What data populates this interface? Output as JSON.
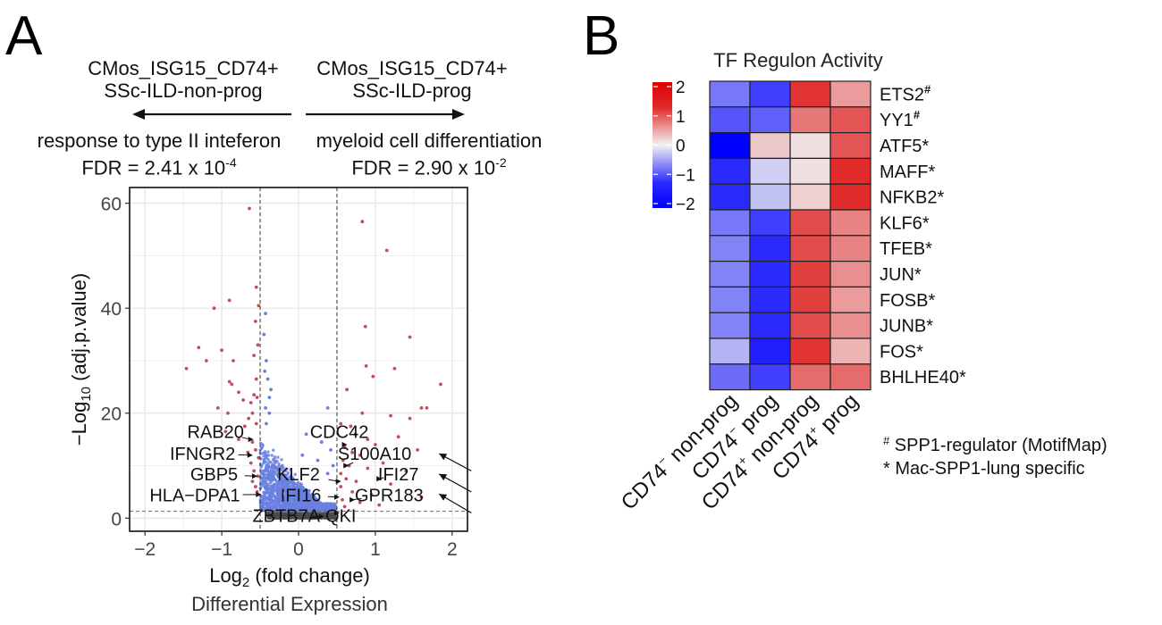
{
  "panels": {
    "a_letter": "A",
    "b_letter": "B"
  },
  "panel_a_header": {
    "left_group_line1": "CMos_ISG15_CD74+",
    "left_group_line2": "SSc-ILD-non-prog",
    "right_group_line1": "CMos_ISG15_CD74+",
    "right_group_line2": "SSc-ILD-prog",
    "left_term": "response to type II inteferon",
    "left_fdr_prefix": "FDR = 2.41 x 10",
    "left_fdr_exp": "-4",
    "right_term": "myeloid cell differentiation",
    "right_fdr_prefix": "FDR = 2.90 x 10",
    "right_fdr_exp": "-2"
  },
  "chart_data": [
    {
      "type": "scatter",
      "title": "Differential Expression",
      "xlabel": "Log2 (fold change)",
      "xlabel_main": "Log",
      "xlabel_sub": "2",
      "xlabel_rest": " (fold change)",
      "ylabel_prefix": "−Log",
      "ylabel_sub": "10",
      "ylabel_rest": " (adj.p.value)",
      "xlim": [
        -2.2,
        2.2
      ],
      "ylim": [
        -2.5,
        63
      ],
      "xticks": [
        -2,
        -1,
        0,
        1,
        2
      ],
      "xtick_labels": [
        "−2",
        "−1",
        "0",
        "1",
        "2"
      ],
      "yticks": [
        0,
        20,
        40,
        60
      ],
      "ytick_labels": [
        "0",
        "20",
        "40",
        "60"
      ],
      "grid": true,
      "fc_threshold": [
        -0.5,
        0.5
      ],
      "p_threshold": 1.3,
      "colors": {
        "significant": "#c0505a",
        "up_or_down_sig": "#c0505a",
        "nonsig_fc": "#6a80e0",
        "ns": "#4a4a4a",
        "threshold_line": "#555555"
      },
      "series": [
        {
          "name": "significant",
          "color": "#c0505a",
          "points": [
            [
              -0.64,
              59.0
            ],
            [
              -0.55,
              44.0
            ],
            [
              -0.9,
              41.5
            ],
            [
              -1.1,
              40.0
            ],
            [
              -0.52,
              40.5
            ],
            [
              -0.56,
              37.5
            ],
            [
              -1.3,
              32.5
            ],
            [
              -1.0,
              32.0
            ],
            [
              -0.53,
              33.0
            ],
            [
              -0.58,
              31.0
            ],
            [
              -1.46,
              28.5
            ],
            [
              -1.2,
              30.0
            ],
            [
              -0.85,
              30.0
            ],
            [
              -0.55,
              26.5
            ],
            [
              -0.58,
              23.5
            ],
            [
              -0.9,
              26.0
            ],
            [
              -0.87,
              25.5
            ],
            [
              -0.78,
              24.0
            ],
            [
              -0.72,
              22.5
            ],
            [
              -0.62,
              22.0
            ],
            [
              -0.54,
              23.0
            ],
            [
              -1.05,
              21.0
            ],
            [
              -0.92,
              20.0
            ],
            [
              -0.6,
              20.0
            ],
            [
              -0.65,
              19.0
            ],
            [
              -0.55,
              18.0
            ],
            [
              -0.7,
              17.5
            ],
            [
              -0.95,
              16.5
            ],
            [
              -0.78,
              15.0
            ],
            [
              -0.6,
              14.5
            ],
            [
              -0.56,
              13.0
            ],
            [
              -0.66,
              12.5
            ],
            [
              -0.52,
              11.5
            ],
            [
              -0.62,
              10.5
            ],
            [
              -0.58,
              9.0
            ],
            [
              -0.53,
              8.0
            ],
            [
              -0.6,
              7.0
            ],
            [
              -0.56,
              6.0
            ],
            [
              -0.54,
              5.0
            ],
            [
              0.83,
              56.5
            ],
            [
              1.15,
              51.0
            ],
            [
              0.87,
              36.5
            ],
            [
              1.45,
              34.5
            ],
            [
              0.88,
              29.0
            ],
            [
              1.25,
              28.5
            ],
            [
              1.85,
              25.5
            ],
            [
              0.97,
              27.0
            ],
            [
              0.63,
              24.5
            ],
            [
              1.6,
              21.0
            ],
            [
              1.67,
              21.0
            ],
            [
              0.83,
              20.0
            ],
            [
              1.2,
              19.5
            ],
            [
              1.45,
              19.0
            ],
            [
              0.55,
              18.0
            ],
            [
              0.68,
              17.5
            ],
            [
              0.74,
              16.0
            ],
            [
              1.3,
              15.5
            ],
            [
              0.9,
              15.0
            ],
            [
              1.0,
              14.0
            ],
            [
              0.6,
              13.5
            ],
            [
              1.55,
              13.0
            ],
            [
              0.7,
              12.5
            ],
            [
              0.8,
              12.0
            ],
            [
              0.58,
              11.0
            ],
            [
              1.1,
              10.5
            ],
            [
              0.66,
              10.0
            ],
            [
              0.9,
              9.5
            ],
            [
              1.4,
              9.0
            ],
            [
              0.55,
              8.5
            ],
            [
              0.62,
              7.5
            ],
            [
              0.75,
              7.0
            ],
            [
              1.2,
              6.5
            ],
            [
              0.55,
              6.0
            ],
            [
              0.7,
              5.0
            ],
            [
              0.95,
              4.5
            ],
            [
              1.6,
              4.0
            ],
            [
              0.57,
              3.5
            ],
            [
              0.8,
              3.0
            ],
            [
              1.05,
              2.5
            ],
            [
              0.6,
              2.2
            ]
          ]
        },
        {
          "name": "large-fold-change-only",
          "color": "#6a80e0",
          "points": [
            [
              -0.43,
              39.0
            ],
            [
              -0.45,
              35.0
            ],
            [
              -0.42,
              30.0
            ],
            [
              -0.44,
              28.0
            ],
            [
              -0.4,
              26.5
            ],
            [
              -0.36,
              24.5
            ],
            [
              -0.38,
              23.0
            ],
            [
              -0.43,
              21.0
            ],
            [
              -0.38,
              20.0
            ],
            [
              -0.42,
              18.0
            ],
            [
              0.38,
              21.0
            ],
            [
              0.1,
              16.0
            ],
            [
              0.42,
              13.0
            ],
            [
              0.3,
              14.5
            ],
            [
              0.05,
              12.0
            ],
            [
              0.25,
              11.0
            ],
            [
              0.45,
              10.0
            ],
            [
              0.38,
              8.5
            ]
          ]
        },
        {
          "name": "cloud",
          "color": "#6a80e0",
          "cloud": true
        }
      ],
      "labels": [
        {
          "gene": "RAB20",
          "x": -0.62,
          "y": 15.0,
          "tx": -1.08,
          "ty": 16.5,
          "anchor": "middle"
        },
        {
          "gene": "IFNGR2",
          "x": -0.63,
          "y": 12.0,
          "tx": -1.25,
          "ty": 12.3,
          "anchor": "middle"
        },
        {
          "gene": "GBP5",
          "x": -0.57,
          "y": 8.0,
          "tx": -1.1,
          "ty": 8.4,
          "anchor": "middle"
        },
        {
          "gene": "HLA−DPA1",
          "x": -0.52,
          "y": 4.5,
          "tx": -1.35,
          "ty": 4.4,
          "anchor": "middle"
        },
        {
          "gene": "CDC42",
          "x": 0.6,
          "y": 14.0,
          "tx": 0.53,
          "ty": 16.5,
          "anchor": "middle"
        },
        {
          "gene": "S100A10",
          "x": 0.62,
          "y": 10.0,
          "tx": 0.99,
          "ty": 12.3,
          "anchor": "middle"
        },
        {
          "gene": "KLF2",
          "x": 0.52,
          "y": 7.0,
          "tx": 0.0,
          "ty": 8.4,
          "anchor": "middle"
        },
        {
          "gene": "IFI27",
          "x": 1.05,
          "y": 7.5,
          "tx": 1.3,
          "ty": 8.4,
          "anchor": "middle"
        },
        {
          "gene": "IFI16",
          "x": 0.5,
          "y": 4.0,
          "tx": 0.03,
          "ty": 4.4,
          "anchor": "middle"
        },
        {
          "gene": "GPR183",
          "x": 0.7,
          "y": 3.5,
          "tx": 1.18,
          "ty": 4.4,
          "anchor": "middle"
        },
        {
          "gene": "ZBTB7A",
          "x": 0.3,
          "y": 0.3,
          "tx": -0.16,
          "ty": 0.5,
          "anchor": "middle"
        },
        {
          "gene": "QKI",
          "x": 0.5,
          "y": 1.0,
          "tx": 0.55,
          "ty": 0.5,
          "anchor": "middle"
        }
      ],
      "external_arrows": [
        {
          "target_gene": "S100A10",
          "from_x": 2.25,
          "from_y": 9.0,
          "to_x": 1.83,
          "to_y": 12.3
        },
        {
          "target_gene": "IFI27",
          "from_x": 2.25,
          "from_y": 5.0,
          "to_x": 1.83,
          "to_y": 8.4
        },
        {
          "target_gene": "GPR183",
          "from_x": 2.25,
          "from_y": 1.0,
          "to_x": 1.83,
          "to_y": 4.6
        }
      ]
    },
    {
      "type": "heatmap",
      "title": "TF Regulon Activity",
      "columns": [
        {
          "base": "CD74",
          "sup": "−",
          "rest": " non-prog"
        },
        {
          "base": "CD74",
          "sup": "−",
          "rest": " prog"
        },
        {
          "base": "CD74",
          "sup": "+",
          "rest": " non-prog"
        },
        {
          "base": "CD74",
          "sup": "+",
          "rest": " prog"
        }
      ],
      "column_labels_plain": [
        "CD74- non-prog",
        "CD74- prog",
        "CD74+ non-prog",
        "CD74+ prog"
      ],
      "rows": [
        {
          "name": "ETS2",
          "mark": "#",
          "values": [
            -0.9,
            -1.4,
            1.5,
            0.6
          ]
        },
        {
          "name": "YY1",
          "mark": "#",
          "values": [
            -1.2,
            -1.1,
            0.9,
            1.2
          ]
        },
        {
          "name": "ATF5",
          "mark": "*",
          "values": [
            -2.0,
            0.25,
            0.1,
            1.2
          ]
        },
        {
          "name": "MAFF",
          "mark": "*",
          "values": [
            -1.6,
            -0.2,
            0.1,
            1.6
          ]
        },
        {
          "name": "NFKB2",
          "mark": "*",
          "values": [
            -1.6,
            -0.3,
            0.2,
            1.6
          ]
        },
        {
          "name": "KLF6",
          "mark": "*",
          "values": [
            -0.9,
            -1.4,
            1.3,
            0.8
          ]
        },
        {
          "name": "TFEB",
          "mark": "*",
          "values": [
            -0.8,
            -1.6,
            1.3,
            0.8
          ]
        },
        {
          "name": "JUN",
          "mark": "*",
          "values": [
            -0.8,
            -1.6,
            1.4,
            0.7
          ]
        },
        {
          "name": "FOSB",
          "mark": "*",
          "values": [
            -0.8,
            -1.6,
            1.4,
            0.6
          ]
        },
        {
          "name": "JUNB",
          "mark": "*",
          "values": [
            -0.8,
            -1.6,
            1.3,
            0.7
          ]
        },
        {
          "name": "FOS",
          "mark": "*",
          "values": [
            -0.4,
            -1.7,
            1.5,
            0.4
          ]
        },
        {
          "name": "BHLHE40",
          "mark": "*",
          "values": [
            -1.0,
            -1.4,
            1.0,
            1.0
          ]
        }
      ],
      "colorbar": {
        "range": [
          -2,
          2
        ],
        "ticks": [
          2,
          1,
          0,
          -1,
          -2
        ],
        "tick_labels": [
          "2",
          "1",
          "0",
          "−1",
          "−2"
        ],
        "low_color": "#0000ff",
        "mid_color": "#f2f2f2",
        "high_color": "#dd0000"
      },
      "legend": [
        {
          "symbol": "#",
          "text": " SPP1-regulator (MotifMap)"
        },
        {
          "symbol": "*",
          "text": " Mac-SPP1-lung specific"
        }
      ]
    }
  ]
}
